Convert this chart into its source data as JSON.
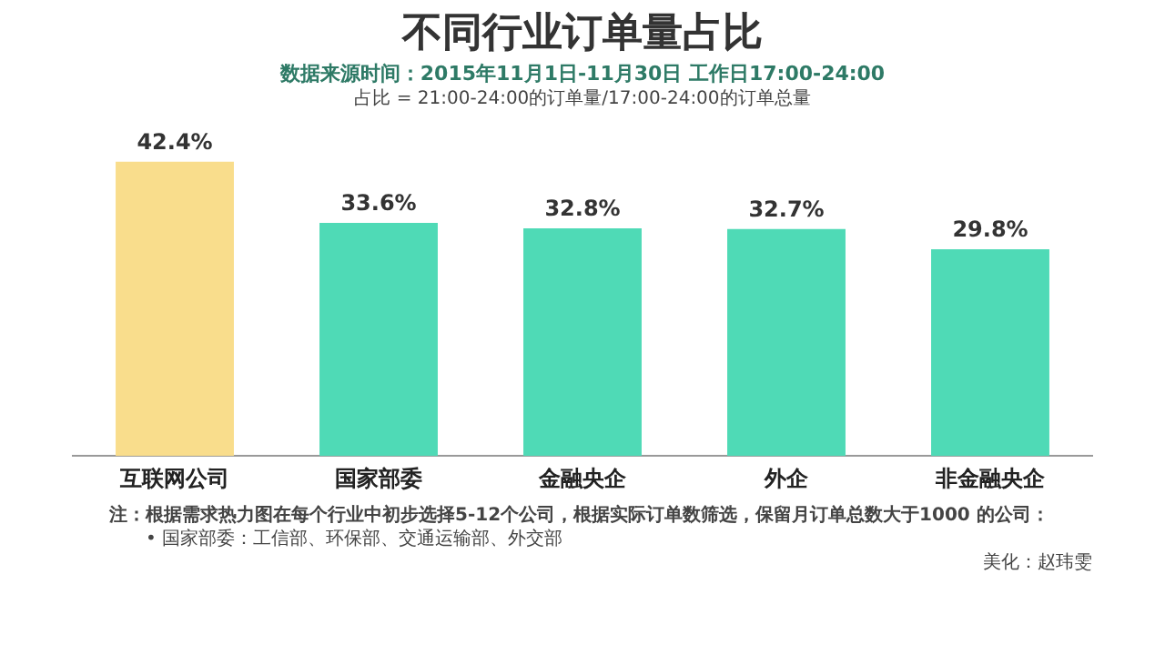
{
  "chart_data": {
    "type": "bar",
    "title": "不同行业订单量占比",
    "subtitle": "数据来源时间：2015年11月1日-11月30日  工作日17:00-24:00",
    "categories": [
      "互联网公司",
      "国家部委",
      "金融央企",
      "外企",
      "非金融央企"
    ],
    "values": [
      42.4,
      33.6,
      32.8,
      32.7,
      29.8
    ],
    "colors": [
      "#f9dd8c",
      "#4fdab6",
      "#4fdab6",
      "#4fdab6",
      "#4fdab6"
    ],
    "value_labels": [
      "42.4%",
      "33.6%",
      "32.8%",
      "32.7%",
      "29.8%"
    ],
    "grid": false,
    "legend": false,
    "annotations": [
      "占比 = 21:00-24:00的订单量/17:00-24:00的订单总量",
      "注：根据需求热力图在每个行业中初步选择5-12个公司，根据实际订单数筛选，保留月订单总数大于1000 的公司：",
      "• 国家部委：工信部、环保部、交通运输部、外交部",
      "美化：赵玮雯"
    ]
  }
}
